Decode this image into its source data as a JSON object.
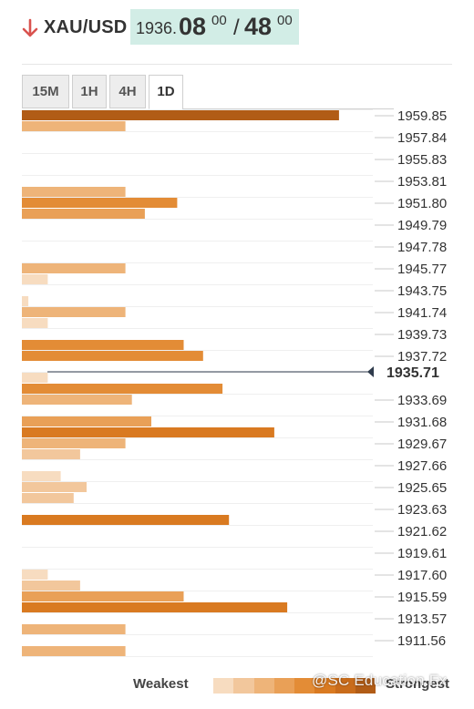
{
  "header": {
    "direction_icon": "arrow-down-icon",
    "pair": "XAU/USD",
    "price_int": "1936.",
    "bid_main": "08",
    "bid_sup": "00",
    "separator": "/",
    "ask_main": "48",
    "ask_sup": "00"
  },
  "tabs": [
    {
      "label": "15M",
      "active": false
    },
    {
      "label": "1H",
      "active": false
    },
    {
      "label": "4H",
      "active": false
    },
    {
      "label": "1D",
      "active": true
    }
  ],
  "legend": {
    "weak_label": "Weakest",
    "strong_label": "Strongest",
    "scale": [
      "#f7dcc0",
      "#f2c79c",
      "#eeb479",
      "#e9a057",
      "#e38c36",
      "#d97a21",
      "#c96c1b",
      "#b15c16"
    ]
  },
  "watermark": "@SC Education.Fx",
  "chart_data": {
    "type": "bar",
    "description_axis": "price levels",
    "current_price": "1935.71",
    "labels": [
      "1959.85",
      "1957.84",
      "1955.83",
      "1953.81",
      "1951.80",
      "1949.79",
      "1947.78",
      "1945.77",
      "1943.75",
      "1941.74",
      "1939.73",
      "1937.72",
      "1933.69",
      "1931.68",
      "1929.67",
      "1927.66",
      "1925.65",
      "1923.63",
      "1921.62",
      "1919.61",
      "1917.60",
      "1915.59",
      "1913.57",
      "1911.56"
    ],
    "label_levels": [
      0,
      2,
      4,
      6,
      8,
      10,
      12,
      14,
      16,
      18,
      20,
      22,
      26,
      28,
      30,
      32,
      34,
      36,
      38,
      40,
      42,
      44,
      46,
      48
    ],
    "current_level": 24,
    "bars": [
      {
        "level": 0,
        "value": 49,
        "strength": 8
      },
      {
        "level": 1,
        "value": 16,
        "strength": 3
      },
      {
        "level": 7,
        "value": 16,
        "strength": 3
      },
      {
        "level": 8,
        "value": 24,
        "strength": 5
      },
      {
        "level": 9,
        "value": 19,
        "strength": 4
      },
      {
        "level": 14,
        "value": 16,
        "strength": 3
      },
      {
        "level": 15,
        "value": 4,
        "strength": 1
      },
      {
        "level": 17,
        "value": 1,
        "strength": 1
      },
      {
        "level": 18,
        "value": 16,
        "strength": 3
      },
      {
        "level": 19,
        "value": 4,
        "strength": 1
      },
      {
        "level": 21,
        "value": 25,
        "strength": 5
      },
      {
        "level": 22,
        "value": 28,
        "strength": 5
      },
      {
        "level": 24,
        "value": 4,
        "strength": 1
      },
      {
        "level": 25,
        "value": 31,
        "strength": 5
      },
      {
        "level": 26,
        "value": 17,
        "strength": 3
      },
      {
        "level": 28,
        "value": 20,
        "strength": 4
      },
      {
        "level": 29,
        "value": 39,
        "strength": 6
      },
      {
        "level": 30,
        "value": 16,
        "strength": 3
      },
      {
        "level": 31,
        "value": 9,
        "strength": 2
      },
      {
        "level": 33,
        "value": 6,
        "strength": 1
      },
      {
        "level": 34,
        "value": 10,
        "strength": 2
      },
      {
        "level": 35,
        "value": 8,
        "strength": 2
      },
      {
        "level": 37,
        "value": 32,
        "strength": 6
      },
      {
        "level": 42,
        "value": 4,
        "strength": 1
      },
      {
        "level": 43,
        "value": 9,
        "strength": 2
      },
      {
        "level": 44,
        "value": 25,
        "strength": 4
      },
      {
        "level": 45,
        "value": 41,
        "strength": 6
      },
      {
        "level": 47,
        "value": 16,
        "strength": 3
      },
      {
        "level": 49,
        "value": 16,
        "strength": 3
      }
    ]
  }
}
